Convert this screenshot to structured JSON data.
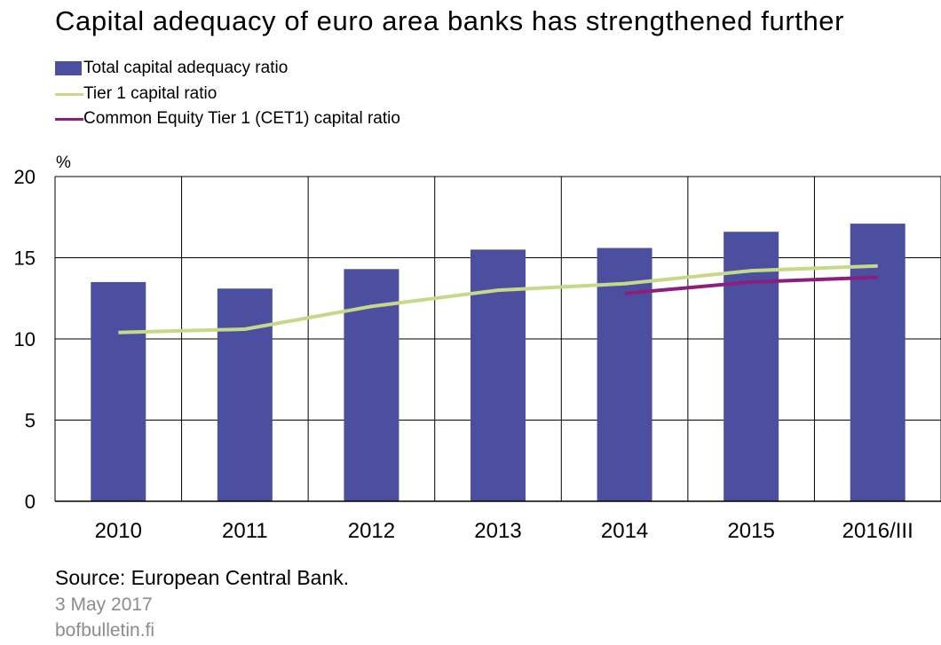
{
  "title": "Capital adequacy of euro area banks has strengthened further",
  "legend": [
    {
      "label": "Total capital adequacy ratio",
      "kind": "bar",
      "color": "#4c4f9f"
    },
    {
      "label": "Tier 1 capital ratio",
      "kind": "line",
      "color": "#c6d98a"
    },
    {
      "label": "Common Equity Tier 1 (CET1) capital ratio",
      "kind": "line",
      "color": "#8a1f7e"
    }
  ],
  "chart_data": {
    "type": "bar",
    "unit_label": "%",
    "categories": [
      "2010",
      "2011",
      "2012",
      "2013",
      "2014",
      "2015",
      "2016/III"
    ],
    "ylim": [
      0,
      20
    ],
    "yticks": [
      "0",
      "5",
      "10",
      "15",
      "20"
    ],
    "grid": true,
    "legend_position": "top-left",
    "series": [
      {
        "name": "Total capital adequacy ratio",
        "type": "bar",
        "color": "#4c4f9f",
        "values": [
          13.5,
          13.1,
          14.3,
          15.5,
          15.6,
          16.6,
          17.1
        ]
      },
      {
        "name": "Tier 1 capital ratio",
        "type": "line",
        "color": "#c6d98a",
        "values": [
          10.4,
          10.6,
          12.0,
          13.0,
          13.4,
          14.2,
          14.5
        ]
      },
      {
        "name": "Common Equity Tier 1 (CET1) capital ratio",
        "type": "line",
        "color": "#8a1f7e",
        "values": [
          null,
          null,
          null,
          null,
          12.8,
          13.5,
          13.8
        ]
      }
    ]
  },
  "footer": {
    "source": "Source: European Central Bank.",
    "date": "3 May 2017",
    "site": "bofbulletin.fi"
  }
}
